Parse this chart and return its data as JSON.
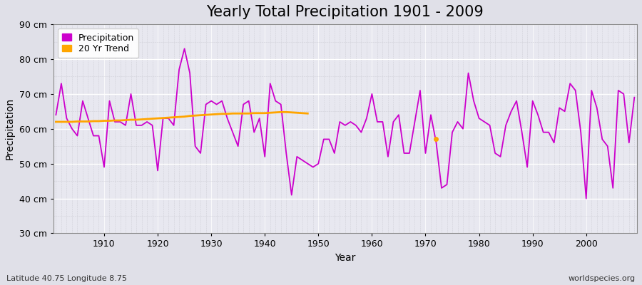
{
  "title": "Yearly Total Precipitation 1901 - 2009",
  "xlabel": "Year",
  "ylabel": "Precipitation",
  "subtitle": "Latitude 40.75 Longitude 8.75",
  "watermark": "worldspecies.org",
  "years": [
    1901,
    1902,
    1903,
    1904,
    1905,
    1906,
    1907,
    1908,
    1909,
    1910,
    1911,
    1912,
    1913,
    1914,
    1915,
    1916,
    1917,
    1918,
    1919,
    1920,
    1921,
    1922,
    1923,
    1924,
    1925,
    1926,
    1927,
    1928,
    1929,
    1930,
    1931,
    1932,
    1933,
    1934,
    1935,
    1936,
    1937,
    1938,
    1939,
    1940,
    1941,
    1942,
    1943,
    1944,
    1945,
    1946,
    1947,
    1948,
    1949,
    1950,
    1951,
    1952,
    1953,
    1954,
    1955,
    1956,
    1957,
    1958,
    1959,
    1960,
    1961,
    1962,
    1963,
    1964,
    1965,
    1966,
    1967,
    1968,
    1969,
    1970,
    1971,
    1972,
    1973,
    1974,
    1975,
    1976,
    1977,
    1978,
    1979,
    1980,
    1981,
    1982,
    1983,
    1984,
    1985,
    1986,
    1987,
    1988,
    1989,
    1990,
    1991,
    1992,
    1993,
    1994,
    1995,
    1996,
    1997,
    1998,
    1999,
    2000,
    2001,
    2002,
    2003,
    2004,
    2005,
    2006,
    2007,
    2008,
    2009
  ],
  "precip": [
    64,
    73,
    63,
    60,
    58,
    68,
    63,
    58,
    58,
    49,
    68,
    62,
    62,
    61,
    70,
    61,
    61,
    62,
    61,
    48,
    63,
    63,
    61,
    77,
    83,
    76,
    55,
    53,
    67,
    68,
    67,
    68,
    63,
    59,
    55,
    67,
    68,
    59,
    63,
    52,
    73,
    68,
    67,
    53,
    41,
    52,
    51,
    50,
    49,
    50,
    57,
    57,
    53,
    62,
    61,
    62,
    61,
    59,
    63,
    70,
    62,
    62,
    52,
    62,
    64,
    53,
    53,
    62,
    71,
    53,
    64,
    56,
    43,
    44,
    59,
    62,
    60,
    76,
    68,
    63,
    62,
    61,
    53,
    52,
    61,
    65,
    68,
    59,
    49,
    68,
    64,
    59,
    59,
    56,
    66,
    65,
    73,
    71,
    59,
    40,
    71,
    66,
    57,
    55,
    43,
    71,
    70,
    56,
    69
  ],
  "trend_years": [
    1901,
    1902,
    1903,
    1904,
    1905,
    1906,
    1907,
    1908,
    1909,
    1910,
    1911,
    1912,
    1913,
    1914,
    1915,
    1916,
    1917,
    1918,
    1919,
    1920,
    1921,
    1922,
    1923,
    1924,
    1925,
    1926,
    1927,
    1928,
    1929,
    1930,
    1931,
    1932,
    1933,
    1934,
    1935,
    1936,
    1937,
    1938,
    1939,
    1940,
    1941,
    1942,
    1943,
    1944,
    1945,
    1946,
    1947,
    1948
  ],
  "trend_values": [
    62.0,
    62.0,
    62.0,
    62.0,
    62.1,
    62.1,
    62.1,
    62.2,
    62.2,
    62.3,
    62.3,
    62.4,
    62.4,
    62.5,
    62.6,
    62.6,
    62.7,
    62.8,
    62.9,
    63.0,
    63.1,
    63.2,
    63.3,
    63.4,
    63.5,
    63.7,
    63.8,
    63.9,
    64.0,
    64.1,
    64.2,
    64.3,
    64.3,
    64.4,
    64.4,
    64.4,
    64.4,
    64.5,
    64.5,
    64.5,
    64.6,
    64.7,
    64.8,
    64.8,
    64.7,
    64.6,
    64.5,
    64.4
  ],
  "trend_dot_year": 1972,
  "trend_dot_value": 57,
  "precip_color": "#cc00cc",
  "trend_color": "#ffa500",
  "fig_bg_color": "#e0e0e8",
  "plot_bg_color": "#e8e8f0",
  "ylim": [
    30,
    90
  ],
  "yticks": [
    30,
    40,
    50,
    60,
    70,
    80,
    90
  ],
  "ytick_labels": [
    "30 cm",
    "40 cm",
    "50 cm",
    "60 cm",
    "70 cm",
    "80 cm",
    "90 cm"
  ],
  "xticks": [
    1910,
    1920,
    1930,
    1940,
    1950,
    1960,
    1970,
    1980,
    1990,
    2000
  ],
  "title_fontsize": 15,
  "axis_label_fontsize": 10,
  "tick_fontsize": 9,
  "legend_fontsize": 9,
  "grid_color": "#ffffff",
  "grid_minor_color": "#d0d0d8"
}
